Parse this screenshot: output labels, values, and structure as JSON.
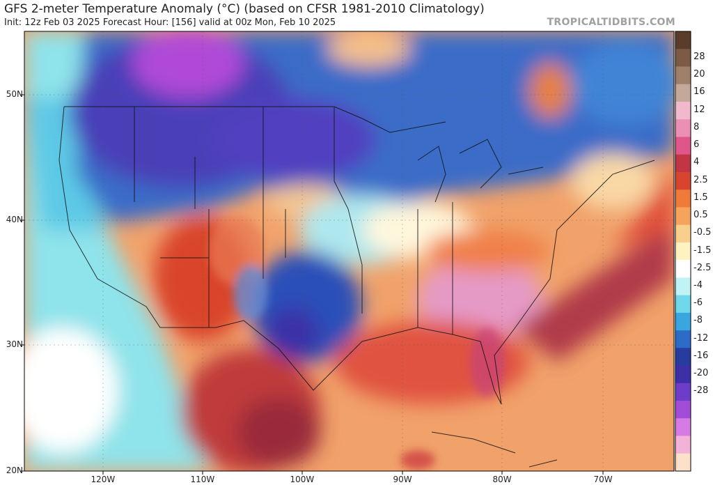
{
  "header": {
    "title": "GFS 2-meter Temperature Anomaly (°C) (based on CFSR 1981-2010 Climatology)",
    "subtitle": "Init: 12z Feb 03 2025   Forecast Hour: [156]   valid at 00z Mon, Feb 10 2025",
    "watermark": "TROPICALTIDBITS.COM"
  },
  "map": {
    "lat_labels": [
      "50N",
      "40N",
      "30N",
      "20N"
    ],
    "lon_labels": [
      "120W",
      "110W",
      "100W",
      "90W",
      "80W",
      "70W"
    ]
  },
  "colorbar": {
    "labels": [
      "28",
      "20",
      "16",
      "12",
      "8",
      "6",
      "4",
      "2.5",
      "1.5",
      "0.5",
      "-0.5",
      "-1.5",
      "-2.5",
      "-4",
      "-6",
      "-8",
      "-12",
      "-16",
      "-20",
      "-28"
    ]
  }
}
